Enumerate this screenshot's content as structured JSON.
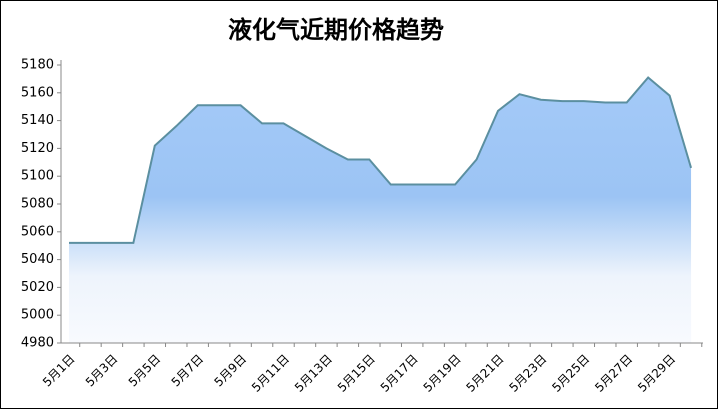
{
  "chart_data": {
    "type": "area",
    "title": "液化气近期价格趋势",
    "categories": [
      "5月1日",
      null,
      "5月3日",
      null,
      "5月5日",
      null,
      "5月7日",
      null,
      "5月9日",
      null,
      "5月11日",
      null,
      "5月13日",
      null,
      "5月15日",
      null,
      "5月17日",
      null,
      "5月19日",
      null,
      "5月21日",
      null,
      "5月23日",
      null,
      "5月25日",
      null,
      "5月27日",
      null,
      "5月29日",
      null
    ],
    "values": [
      5052,
      5052,
      5052,
      5052,
      5122,
      5136,
      5151,
      5151,
      5151,
      5138,
      5138,
      5129,
      5120,
      5112,
      5112,
      5094,
      5094,
      5094,
      5094,
      5112,
      5147,
      5159,
      5155,
      5154,
      5154,
      5153,
      5153,
      5171,
      5158,
      5106
    ],
    "color": "#5b8fa0",
    "ylim": [
      4980,
      5180
    ],
    "yticks": [
      4980,
      5000,
      5020,
      5040,
      5060,
      5080,
      5100,
      5120,
      5140,
      5160,
      5180
    ]
  }
}
